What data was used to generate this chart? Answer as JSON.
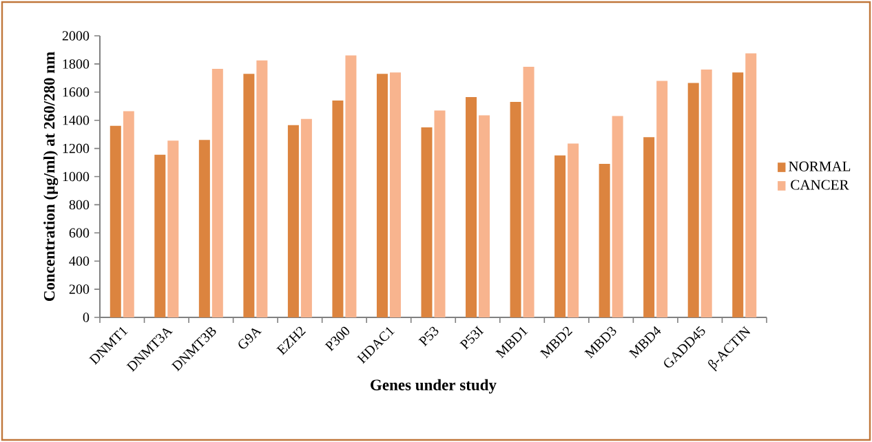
{
  "chart_data": {
    "type": "bar",
    "xlabel": "Genes under study",
    "ylabel": "Concentration (µg/ml) at 260/280 nm",
    "categories": [
      "DNMT1",
      "DNMT3A",
      "DNMT3B",
      "G9A",
      "EZH2",
      "P300",
      "HDAC1",
      "P53",
      "P53I",
      "MBD1",
      "MBD2",
      "MBD3",
      "MBD4",
      "GADD45",
      "β-ACTIN"
    ],
    "series": [
      {
        "name": "NORMAL",
        "color": "#dc843f",
        "values": [
          1360,
          1155,
          1260,
          1730,
          1365,
          1540,
          1730,
          1350,
          1565,
          1530,
          1150,
          1090,
          1280,
          1665,
          1740
        ]
      },
      {
        "name": "CANCER",
        "color": "#f8b48e",
        "values": [
          1465,
          1255,
          1765,
          1825,
          1410,
          1860,
          1740,
          1470,
          1435,
          1780,
          1235,
          1430,
          1680,
          1760,
          1875
        ]
      }
    ],
    "ylim": [
      0,
      2000
    ],
    "yticks": [
      0,
      200,
      400,
      600,
      800,
      1000,
      1200,
      1400,
      1600,
      1800,
      2000
    ],
    "legend": "right",
    "grid": false
  }
}
